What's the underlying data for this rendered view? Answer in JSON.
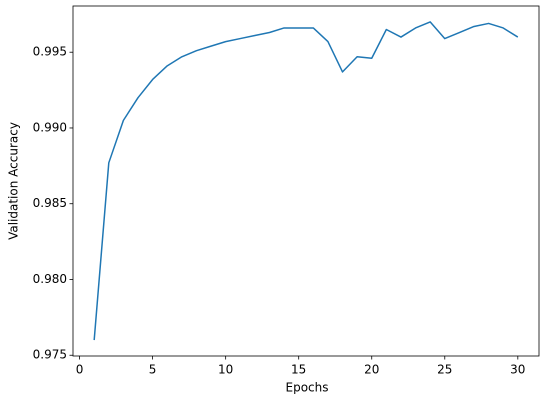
{
  "chart_data": {
    "type": "line",
    "xlabel": "Epochs",
    "ylabel": "Validation Accuracy",
    "x": [
      1,
      2,
      3,
      4,
      5,
      6,
      7,
      8,
      9,
      10,
      11,
      12,
      13,
      14,
      15,
      16,
      17,
      18,
      19,
      20,
      21,
      22,
      23,
      24,
      25,
      26,
      27,
      28,
      29,
      30
    ],
    "series": [
      {
        "color": "#1f77b4",
        "values": [
          0.976,
          0.9877,
          0.9905,
          0.992,
          0.9932,
          0.9941,
          0.9947,
          0.9951,
          0.9954,
          0.9957,
          0.9959,
          0.9961,
          0.9963,
          0.9966,
          0.9966,
          0.9966,
          0.9957,
          0.9937,
          0.9947,
          0.9946,
          0.9965,
          0.996,
          0.9966,
          0.997,
          0.9959,
          0.9963,
          0.9967,
          0.9969,
          0.9966,
          0.996
        ]
      }
    ],
    "xlim": [
      -0.45,
      31.45
    ],
    "xticks": [
      0,
      5,
      10,
      15,
      20,
      25,
      30
    ],
    "ylim": [
      0.97495,
      0.99805
    ],
    "yticks": [
      0.975,
      {
        "value": 0.98,
        "label": "0.980"
      },
      0.985,
      {
        "value": 0.99,
        "label": "0.990"
      },
      0.995
    ]
  }
}
